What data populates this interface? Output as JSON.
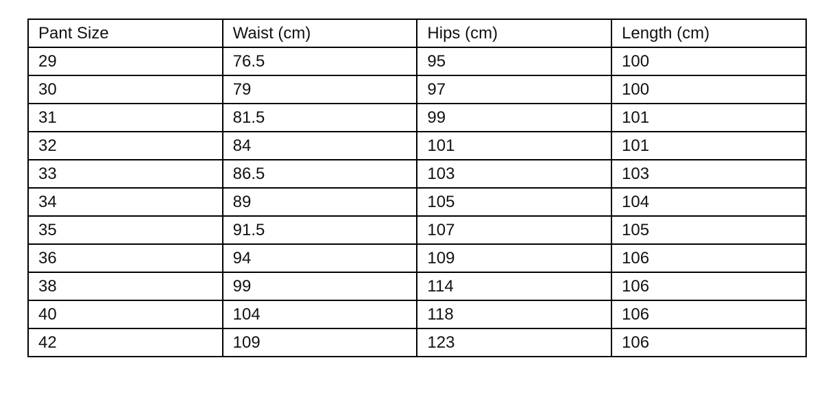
{
  "table": {
    "headers": [
      "Pant Size",
      "Waist (cm)",
      "Hips (cm)",
      "Length (cm)"
    ],
    "rows": [
      [
        "29",
        "76.5",
        "95",
        "100"
      ],
      [
        "30",
        "79",
        "97",
        "100"
      ],
      [
        "31",
        "81.5",
        "99",
        "101"
      ],
      [
        "32",
        "84",
        "101",
        "101"
      ],
      [
        "33",
        "86.5",
        "103",
        "103"
      ],
      [
        "34",
        "89",
        "105",
        "104"
      ],
      [
        "35",
        "91.5",
        "107",
        "105"
      ],
      [
        "36",
        "94",
        "109",
        "106"
      ],
      [
        "38",
        "99",
        "114",
        "106"
      ],
      [
        "40",
        "104",
        "118",
        "106"
      ],
      [
        "42",
        "109",
        "123",
        "106"
      ]
    ]
  }
}
